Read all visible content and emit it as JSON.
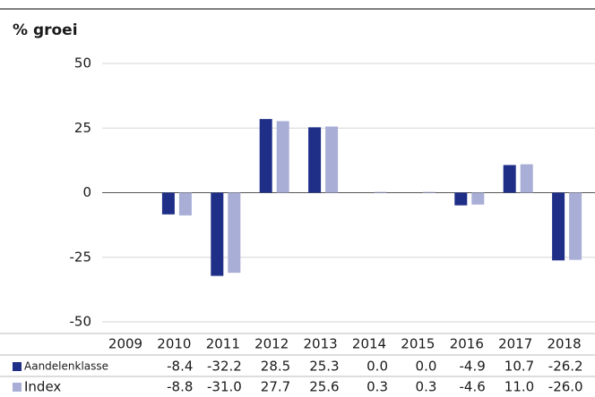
{
  "chart_data": {
    "type": "bar",
    "title": "% groei",
    "categories": [
      "2009",
      "2010",
      "2011",
      "2012",
      "2013",
      "2014",
      "2015",
      "2016",
      "2017",
      "2018"
    ],
    "series": [
      {
        "name": "Aandelenklasse",
        "color": "#1f2e86",
        "values": [
          null,
          -8.4,
          -32.2,
          28.5,
          25.3,
          0.0,
          0.0,
          -4.9,
          10.7,
          -26.2
        ],
        "value_labels": [
          null,
          "-8.4",
          "-32.2",
          "28.5",
          "25.3",
          "0.0",
          "0.0",
          "-4.9",
          "10.7",
          "-26.2"
        ]
      },
      {
        "name": "Index",
        "color": "#a9aed6",
        "values": [
          null,
          -8.8,
          -31.0,
          27.7,
          25.6,
          0.3,
          0.3,
          -4.6,
          11.0,
          -26.0
        ],
        "value_labels": [
          null,
          "-8.8",
          "-31.0",
          "27.7",
          "25.6",
          "0.3",
          "0.3",
          "-4.6",
          "11.0",
          "-26.0"
        ]
      }
    ],
    "ylim": [
      -50,
      50
    ],
    "yticks": [
      50,
      25,
      0,
      -25,
      -50
    ],
    "grid": true
  }
}
